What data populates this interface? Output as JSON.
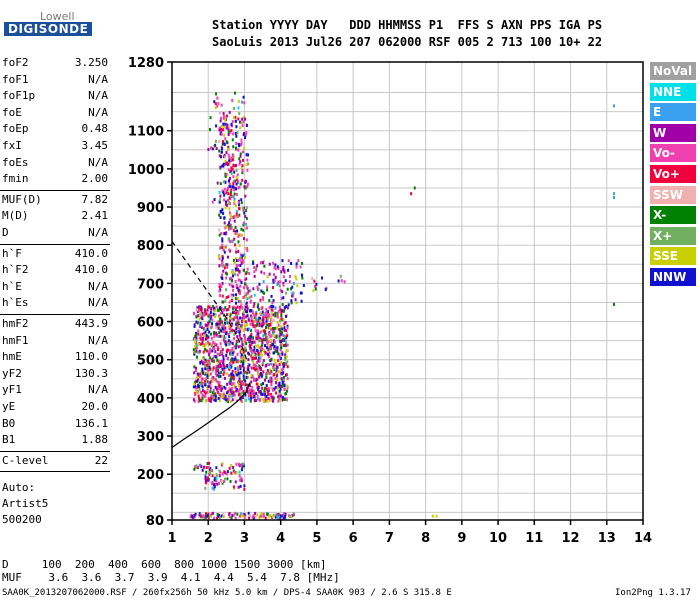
{
  "logo": {
    "top": "Lowell",
    "bottom": "DIGISONDE"
  },
  "header": {
    "line1": "Station YYYY DAY   DDD HHMMSS P1  FFS S AXN PPS IGA PS",
    "line2": "SaoLuis 2013 Jul26 207 062000 RSF 005 2 713 100 10+ 22"
  },
  "params": [
    {
      "name": "foF2",
      "value": "3.250"
    },
    {
      "name": "foF1",
      "value": "N/A"
    },
    {
      "name": "foF1p",
      "value": "N/A"
    },
    {
      "name": "foE",
      "value": "N/A"
    },
    {
      "name": "foEp",
      "value": "0.48"
    },
    {
      "name": "fxI",
      "value": "3.45"
    },
    {
      "name": "foEs",
      "value": "N/A"
    },
    {
      "name": "fmin",
      "value": "2.00"
    },
    {
      "name": "MUF(D)",
      "value": "7.82"
    },
    {
      "name": "M(D)",
      "value": "2.41"
    },
    {
      "name": "D",
      "value": "N/A"
    },
    {
      "name": "h`F",
      "value": "410.0"
    },
    {
      "name": "h`F2",
      "value": "410.0"
    },
    {
      "name": "h`E",
      "value": "N/A"
    },
    {
      "name": "h`Es",
      "value": "N/A"
    },
    {
      "name": "hmF2",
      "value": "443.9"
    },
    {
      "name": "hmF1",
      "value": "N/A"
    },
    {
      "name": "hmE",
      "value": "110.0"
    },
    {
      "name": "yF2",
      "value": "130.3"
    },
    {
      "name": "yF1",
      "value": "N/A"
    },
    {
      "name": "yE",
      "value": "20.0"
    },
    {
      "name": "B0",
      "value": "136.1"
    },
    {
      "name": "B1",
      "value": "1.88"
    },
    {
      "name": "C-level",
      "value": "22"
    }
  ],
  "mode": {
    "line1": "Auto:",
    "line2": "Artist5",
    "line3": "500200"
  },
  "legend": [
    {
      "label": "NoVal",
      "color": "#a0a0a0"
    },
    {
      "label": "NNE",
      "color": "#00e0e8"
    },
    {
      "label": "E",
      "color": "#3aa0f0"
    },
    {
      "label": "W",
      "color": "#a000a8"
    },
    {
      "label": "Vo-",
      "color": "#f040b0"
    },
    {
      "label": "Vo+",
      "color": "#f0003c"
    },
    {
      "label": "SSW",
      "color": "#f0b0b0"
    },
    {
      "label": "X-",
      "color": "#008000"
    },
    {
      "label": "X+",
      "color": "#70b060"
    },
    {
      "label": "SSE",
      "color": "#c8d000"
    },
    {
      "label": "NNW",
      "color": "#1010d0"
    }
  ],
  "bottom": {
    "d_row": "D     100  200  400  600  800 1000 1500 3000 [km]",
    "muf_row": "MUF    3.6  3.6  3.7  3.9  4.1  4.4  5.4  7.8 [MHz]"
  },
  "footer": {
    "left": "SAA0K_2013207062000.RSF / 260fx256h 50 kHz 5.0 km / DPS-4 SAA0K 903 / 2.6 S 315.8 E",
    "right": "Ion2Png 1.3.17"
  },
  "chart_data": {
    "type": "scatter",
    "xlim": [
      1,
      14
    ],
    "ylim": [
      80,
      1280
    ],
    "x_ticks": [
      1,
      2,
      3,
      4,
      5,
      6,
      7,
      8,
      9,
      10,
      11,
      12,
      13,
      14
    ],
    "y_ticks": [
      80,
      200,
      300,
      400,
      500,
      600,
      700,
      800,
      900,
      1000,
      1100,
      1280
    ],
    "grid": true,
    "trace_curve": [
      [
        1.0,
        270
      ],
      [
        1.3,
        290
      ],
      [
        1.7,
        315
      ],
      [
        2.0,
        335
      ],
      [
        2.3,
        355
      ],
      [
        2.6,
        375
      ],
      [
        2.85,
        395
      ],
      [
        3.05,
        415
      ],
      [
        3.15,
        440
      ]
    ],
    "dashed_curve": [
      [
        1.0,
        810
      ],
      [
        1.3,
        770
      ],
      [
        1.6,
        730
      ],
      [
        1.9,
        690
      ],
      [
        2.2,
        650
      ],
      [
        2.5,
        610
      ],
      [
        2.75,
        570
      ],
      [
        2.95,
        530
      ],
      [
        3.1,
        490
      ]
    ],
    "isolated_points": [
      {
        "x": 7.6,
        "y": 935,
        "color": "#f0003c"
      },
      {
        "x": 7.7,
        "y": 950,
        "color": "#008000"
      },
      {
        "x": 13.2,
        "y": 1165,
        "color": "#3aa0f0"
      },
      {
        "x": 13.2,
        "y": 935,
        "color": "#3aa0f0"
      },
      {
        "x": 13.2,
        "y": 925,
        "color": "#3aa0f0"
      },
      {
        "x": 13.2,
        "y": 645,
        "color": "#008000"
      },
      {
        "x": 8.2,
        "y": 90,
        "color": "#c8d000"
      },
      {
        "x": 8.3,
        "y": 90,
        "color": "#c8d000"
      }
    ],
    "cluster_regions": [
      {
        "xmin": 1.6,
        "xmax": 4.2,
        "ymin": 390,
        "ymax": 640,
        "count": 1400
      },
      {
        "xmin": 2.3,
        "xmax": 3.1,
        "ymin": 640,
        "ymax": 1150,
        "count": 420
      },
      {
        "xmin": 2.0,
        "xmax": 3.0,
        "ymin": 900,
        "ymax": 1200,
        "count": 80
      },
      {
        "xmin": 3.1,
        "xmax": 4.6,
        "ymin": 640,
        "ymax": 760,
        "count": 110
      },
      {
        "xmin": 4.6,
        "xmax": 5.8,
        "ymin": 680,
        "ymax": 720,
        "count": 14
      },
      {
        "xmin": 1.9,
        "xmax": 3.0,
        "ymin": 160,
        "ymax": 230,
        "count": 90
      },
      {
        "xmin": 1.5,
        "xmax": 4.4,
        "ymin": 84,
        "ymax": 98,
        "count": 110
      },
      {
        "xmin": 1.6,
        "xmax": 1.9,
        "ymin": 210,
        "ymax": 225,
        "count": 12
      }
    ]
  }
}
